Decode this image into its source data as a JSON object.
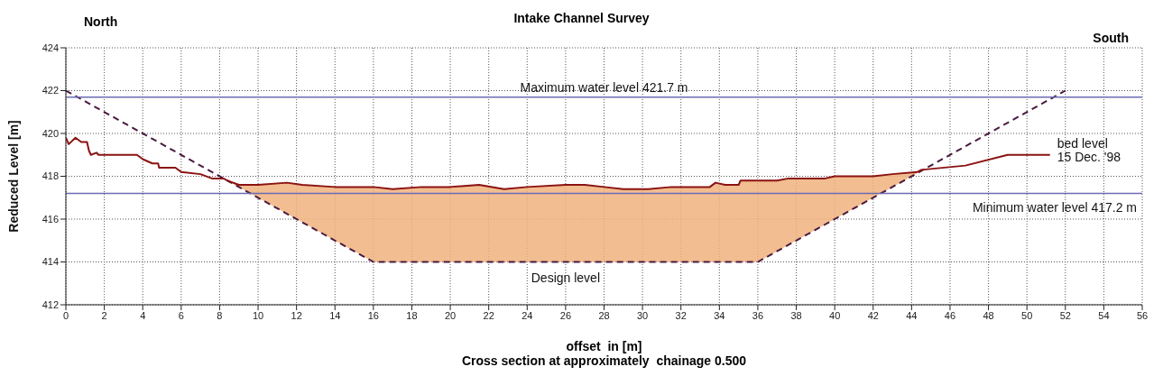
{
  "chart_data": {
    "type": "line",
    "title": "Intake Channel Survey",
    "xlabel": "offset  in [m]",
    "ylabel": "Reduced Level [m]",
    "annotations": [
      "North",
      "South",
      "Cross section at approximately  chainage 0.500"
    ],
    "xlim": [
      0,
      56
    ],
    "xticks": [
      0,
      2,
      4,
      6,
      8,
      10,
      12,
      14,
      16,
      18,
      20,
      22,
      24,
      26,
      28,
      30,
      32,
      34,
      36,
      38,
      40,
      42,
      44,
      46,
      48,
      50,
      52,
      54,
      56
    ],
    "ylim": [
      412,
      424
    ],
    "yticks": [
      412,
      414,
      416,
      418,
      420,
      422,
      424
    ],
    "grid": true,
    "marker": "none",
    "legend": false,
    "ref_lines": [
      {
        "axis": "y",
        "value": 421.7,
        "label": "Maximum water level 421.7 m",
        "color": "#6c6cb4"
      },
      {
        "axis": "y",
        "value": 417.2,
        "label": "Minimum water level 417.2 m",
        "color": "#6c6cb4"
      }
    ],
    "series": [
      {
        "name": "Design level",
        "line_style": "dashed",
        "color": "#4a1a40",
        "x": [
          0,
          16,
          36,
          52
        ],
        "values": [
          422,
          414,
          414,
          422
        ]
      },
      {
        "name": "bed level 15 Dec. '98",
        "line_style": "solid",
        "color": "#8b1212",
        "x": [
          0,
          0.15,
          0.5,
          0.8,
          1.1,
          1.2,
          1.3,
          1.6,
          1.7,
          3.7,
          4,
          4.5,
          4.8,
          4.85,
          5.7,
          6,
          7,
          7.6,
          8.2,
          8.4,
          9,
          10,
          11.5,
          12.3,
          14,
          16,
          17,
          18.5,
          20,
          21.5,
          22.8,
          24,
          26,
          27,
          28,
          29,
          30.3,
          31.5,
          33.5,
          33.8,
          34.3,
          35,
          35.1,
          36,
          37,
          37.6,
          39.5,
          40,
          42,
          43,
          44.3,
          44.5,
          46.8,
          49,
          51.2
        ],
        "values": [
          419.8,
          419.5,
          419.8,
          419.6,
          419.6,
          419.2,
          419.0,
          419.1,
          419.0,
          419.0,
          418.8,
          418.6,
          418.6,
          418.4,
          418.4,
          418.2,
          418.1,
          417.9,
          417.9,
          417.8,
          417.6,
          417.6,
          417.7,
          417.6,
          417.5,
          417.5,
          417.4,
          417.5,
          417.5,
          417.6,
          417.4,
          417.5,
          417.6,
          417.6,
          417.5,
          417.4,
          417.4,
          417.5,
          417.5,
          417.7,
          417.6,
          417.6,
          417.8,
          417.8,
          417.8,
          417.9,
          417.9,
          418.0,
          418.0,
          418.1,
          418.2,
          418.3,
          418.5,
          419.0,
          419.0
        ],
        "lower": [
          null,
          null,
          null,
          null,
          null,
          null,
          null,
          null,
          null,
          null,
          null,
          null,
          null,
          null,
          null,
          null,
          null,
          null,
          null,
          417.8,
          417.5,
          417,
          416.25,
          415.85,
          415,
          414,
          414,
          414,
          414,
          414,
          414,
          414,
          414,
          414,
          414,
          414,
          414,
          414,
          414,
          414,
          414,
          414,
          414,
          414,
          414.5,
          414.8,
          415.75,
          416,
          417,
          417.5,
          418.15,
          null,
          null,
          null,
          null
        ],
        "upper": [
          null,
          null,
          null,
          null,
          null,
          null,
          null,
          null,
          null,
          null,
          null,
          null,
          null,
          null,
          null,
          null,
          null,
          null,
          null,
          417.8,
          417.6,
          417.6,
          417.7,
          417.6,
          417.5,
          417.5,
          417.4,
          417.5,
          417.5,
          417.6,
          417.4,
          417.5,
          417.6,
          417.6,
          417.5,
          417.4,
          417.4,
          417.5,
          417.5,
          417.7,
          417.6,
          417.6,
          417.8,
          417.8,
          417.8,
          417.9,
          417.9,
          418.0,
          418.0,
          418.1,
          418.2,
          null,
          null,
          null,
          null
        ]
      }
    ]
  }
}
